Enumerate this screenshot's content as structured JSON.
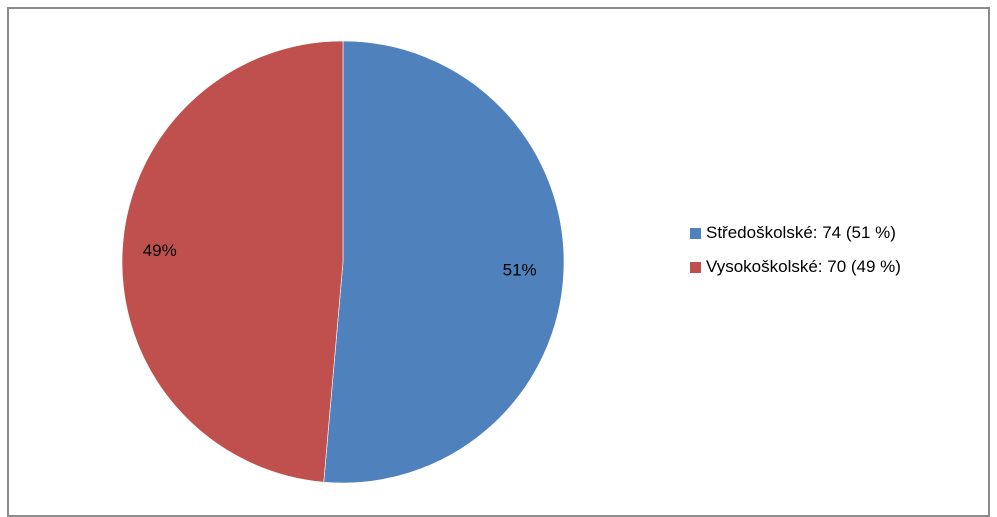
{
  "chart_data": {
    "type": "pie",
    "title": "",
    "slices": [
      {
        "label": "Středoškolské",
        "value": 74,
        "percent_label": "51%",
        "legend_text": "Středoškolské: 74 (51 %)",
        "color": "#4f81bd"
      },
      {
        "label": "Vysokoškolské",
        "value": 70,
        "percent_label": "49%",
        "legend_text": "Vysokoškolské: 70 (49 %)",
        "color": "#c0504d"
      }
    ],
    "start_angle_deg": 0,
    "direction": "clockwise",
    "legend_position": "right"
  }
}
